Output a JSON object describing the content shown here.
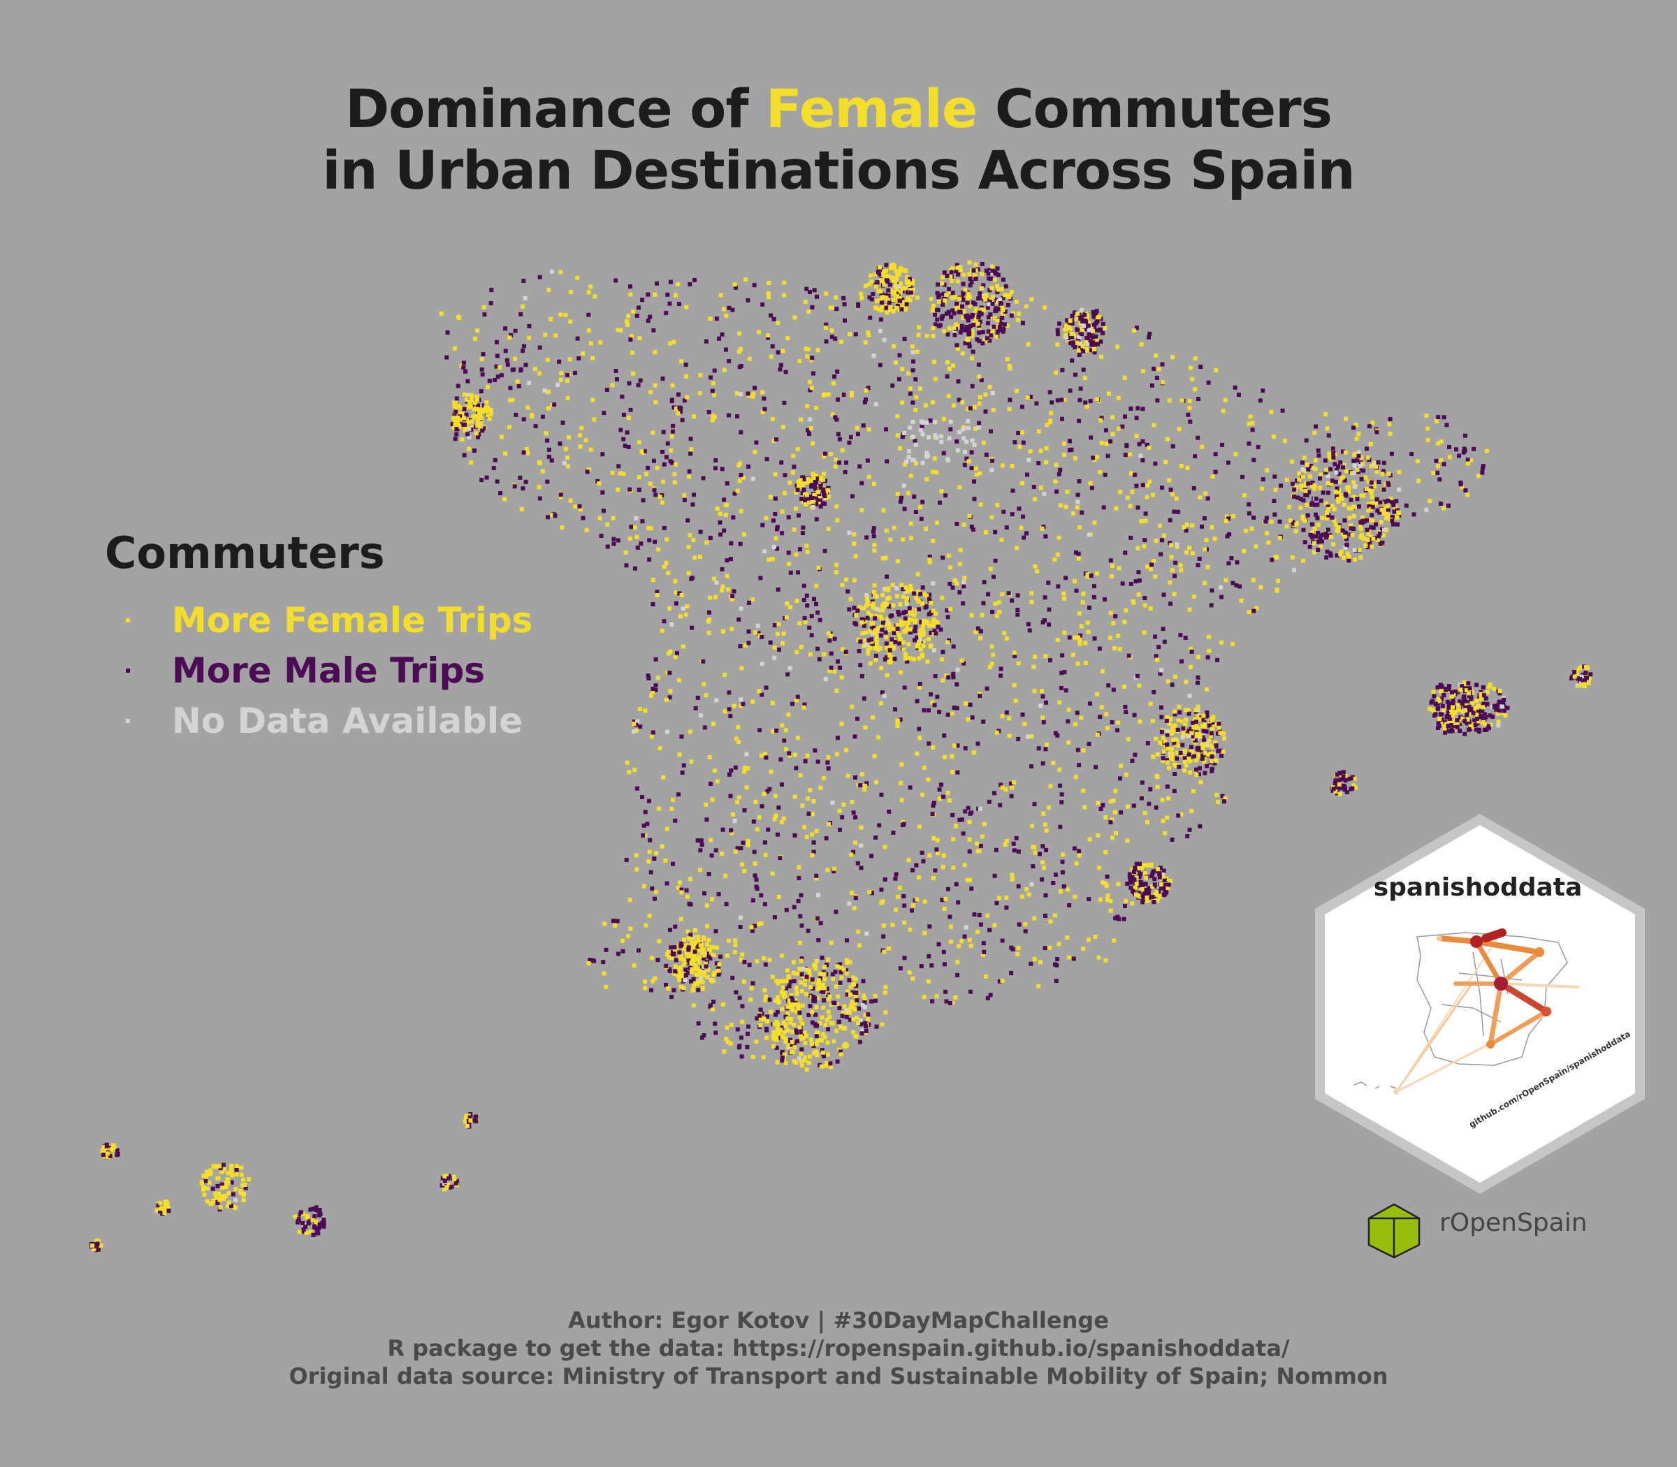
{
  "title": {
    "line1_before": "Dominance of ",
    "line1_highlight": "Female",
    "line1_after": " Commuters",
    "line2": "in Urban Destinations Across Spain"
  },
  "legend": {
    "title": "Commuters",
    "items": [
      {
        "label": "More Female Trips",
        "color": "#f3de2c"
      },
      {
        "label": "More Male Trips",
        "color": "#4b0c55"
      },
      {
        "label": "No Data Available",
        "color": "#d4d4d4"
      }
    ]
  },
  "logo": {
    "title": "spanishoddata",
    "url": "github.com/rOpenSpain/spanishoddata"
  },
  "org": {
    "name": "rOpenSpain"
  },
  "credits": [
    "Author: Egor Kotov | #30DayMapChallenge",
    "R package to get the data: https://ropenspain.github.io/spanishoddata/",
    "Original data source: Ministry of Transport and Sustainable Mobility of Spain; Nommon"
  ],
  "colors": {
    "background": "#a3a3a3",
    "female": "#f3de2c",
    "male": "#4b0c55",
    "nodata": "#d4d4d4"
  }
}
